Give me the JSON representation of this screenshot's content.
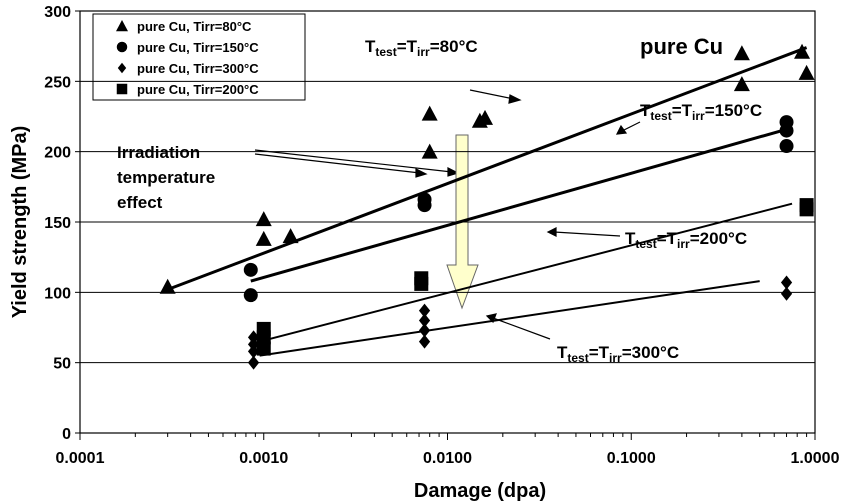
{
  "chart_data": {
    "type": "scatter",
    "xlabel": "Damage (dpa)",
    "ylabel": "Yield strength (MPa)",
    "xscale": "log",
    "xlim": [
      0.0001,
      1
    ],
    "ylim": [
      0,
      300
    ],
    "xticks": [
      {
        "value": 0.0001,
        "label": "0.0001"
      },
      {
        "value": 0.001,
        "label": "0.0010"
      },
      {
        "value": 0.01,
        "label": "0.0100"
      },
      {
        "value": 0.1,
        "label": "0.1000"
      },
      {
        "value": 1,
        "label": "1.0000"
      }
    ],
    "xminorticks": [
      0.0002,
      0.0003,
      0.0004,
      0.0005,
      0.0006,
      0.0007,
      0.0008,
      0.0009,
      0.002,
      0.003,
      0.004,
      0.005,
      0.006,
      0.007,
      0.008,
      0.009,
      0.02,
      0.03,
      0.04,
      0.05,
      0.06,
      0.07,
      0.08,
      0.09,
      0.2,
      0.3,
      0.4,
      0.5,
      0.6,
      0.7,
      0.8,
      0.9
    ],
    "yticks": [
      0,
      50,
      100,
      150,
      200,
      250,
      300
    ],
    "grid": true,
    "legend": "upper left",
    "series": [
      {
        "name": "pure Cu, Tirr=80°C",
        "marker": "triangle",
        "color": "#000000",
        "x": [
          0.0003,
          0.001,
          0.001,
          0.0014,
          0.008,
          0.008,
          0.015,
          0.016,
          0.4,
          0.4,
          0.85,
          0.9
        ],
        "values": [
          104,
          152,
          138,
          140,
          227,
          200,
          222,
          224,
          270,
          248,
          271,
          256
        ]
      },
      {
        "name": "pure Cu, Tirr=150°C",
        "marker": "circle",
        "color": "#000000",
        "x": [
          0.00085,
          0.00085,
          0.0075,
          0.0075,
          0.7,
          0.7,
          0.7
        ],
        "values": [
          116,
          98,
          166,
          162,
          221,
          215,
          204
        ]
      },
      {
        "name": "pure Cu, Tirr=300°C",
        "marker": "diamond",
        "color": "#000000",
        "x": [
          0.00088,
          0.00088,
          0.00088,
          0.00088,
          0.0075,
          0.0075,
          0.0075,
          0.0075,
          0.7,
          0.7
        ],
        "values": [
          68,
          63,
          58,
          50,
          87,
          80,
          73,
          65,
          107,
          99
        ]
      },
      {
        "name": "pure Cu, Tirr=200°C",
        "marker": "square",
        "color": "#000000",
        "x": [
          0.001,
          0.001,
          0.001,
          0.0072,
          0.0072,
          0.9,
          0.9
        ],
        "values": [
          74,
          68,
          60,
          110,
          106,
          162,
          159
        ]
      }
    ],
    "fit_lines": [
      {
        "x": [
          0.0003,
          0.9
        ],
        "y": [
          102,
          274
        ],
        "width": 3
      },
      {
        "x": [
          0.00085,
          0.75
        ],
        "y": [
          108,
          217
        ],
        "width": 3
      },
      {
        "x": [
          0.00095,
          0.75
        ],
        "y": [
          65,
          163
        ],
        "width": 2
      },
      {
        "x": [
          0.00095,
          0.5
        ],
        "y": [
          55,
          108
        ],
        "width": 2
      }
    ],
    "annotations": [
      {
        "parts": [
          "T",
          "test",
          "=T",
          "irr",
          "=80°C"
        ]
      },
      {
        "parts": [
          "T",
          "test",
          "=T",
          "irr",
          "=150°C"
        ]
      },
      {
        "parts": [
          "T",
          "test",
          "=T",
          "irr",
          "=200°C"
        ]
      },
      {
        "parts": [
          "T",
          "test",
          "=T",
          "irr",
          "=300°C"
        ]
      }
    ],
    "material_label": "pure Cu",
    "effect_label": [
      "Irradiation",
      "temperature",
      "effect"
    ]
  }
}
